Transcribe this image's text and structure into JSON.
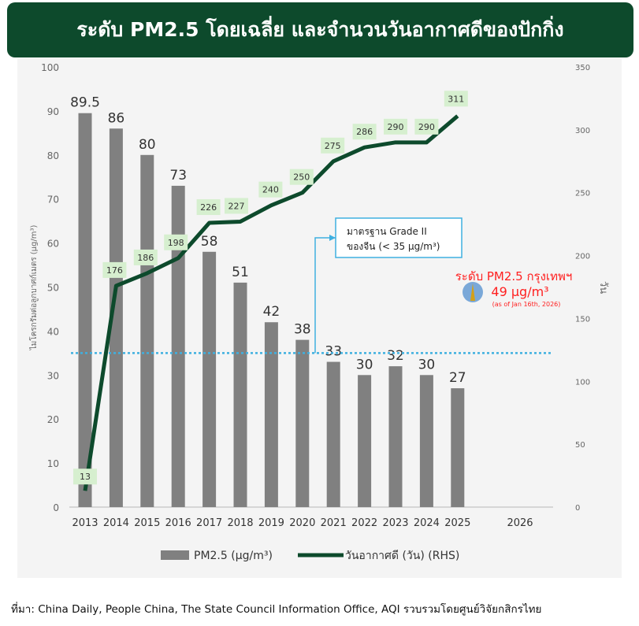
{
  "title": "ระดับ PM2.5 โดยเฉลี่ย และจำนวนวันอากาศดีของปักกิ่ง",
  "chart_data": {
    "type": "bar+line",
    "categories": [
      "2013",
      "2014",
      "2015",
      "2016",
      "2017",
      "2018",
      "2019",
      "2020",
      "2021",
      "2022",
      "2023",
      "2024",
      "2025",
      "2026"
    ],
    "series": [
      {
        "name": "PM2.5 (μg/m³)",
        "type": "bar",
        "axis": "left",
        "color": "#808080",
        "values": [
          89.5,
          86,
          80,
          73,
          58,
          51,
          42,
          38,
          33,
          30,
          32,
          30,
          27,
          null
        ],
        "labels": [
          "89.5",
          "86",
          "80",
          "73",
          "58",
          "51",
          "42",
          "38",
          "33",
          "30",
          "32",
          "30",
          "27",
          ""
        ]
      },
      {
        "name": "วันอากาศดี (วัน) (RHS)",
        "type": "line",
        "axis": "right",
        "color": "#0d4a2c",
        "values": [
          13,
          176,
          186,
          198,
          226,
          227,
          240,
          250,
          275,
          286,
          290,
          290,
          311,
          null
        ]
      }
    ],
    "ylabel": "ไมโครกรัมต่อลูกบาศก์เมตร (μg/m³)",
    "ylabel_right": "วัน",
    "ylim": [
      0,
      100
    ],
    "yticks": [
      0,
      10,
      20,
      30,
      40,
      50,
      60,
      70,
      80,
      90,
      100
    ],
    "ylim_right": [
      0,
      350
    ],
    "yticks_right": [
      0,
      50,
      100,
      150,
      200,
      250,
      300,
      350
    ],
    "threshold": {
      "value": 35,
      "color": "#3fb0e0",
      "label_line1": "มาตรฐาน Grade II",
      "label_line2": "ของจีน (< 35 μg/m³)"
    },
    "annotation": {
      "line1": "ระดับ PM2.5 กรุงเทพฯ",
      "line2": "49 μg/m³",
      "line3": "(as of Jan 16th, 2026)",
      "color": "#ff2020"
    },
    "legend": "bottom",
    "grid": false
  },
  "source": "ที่มา: China Daily, People China, The State Council Information Office, AQI รวบรวมโดยศูนย์วิจัยกสิกรไทย"
}
